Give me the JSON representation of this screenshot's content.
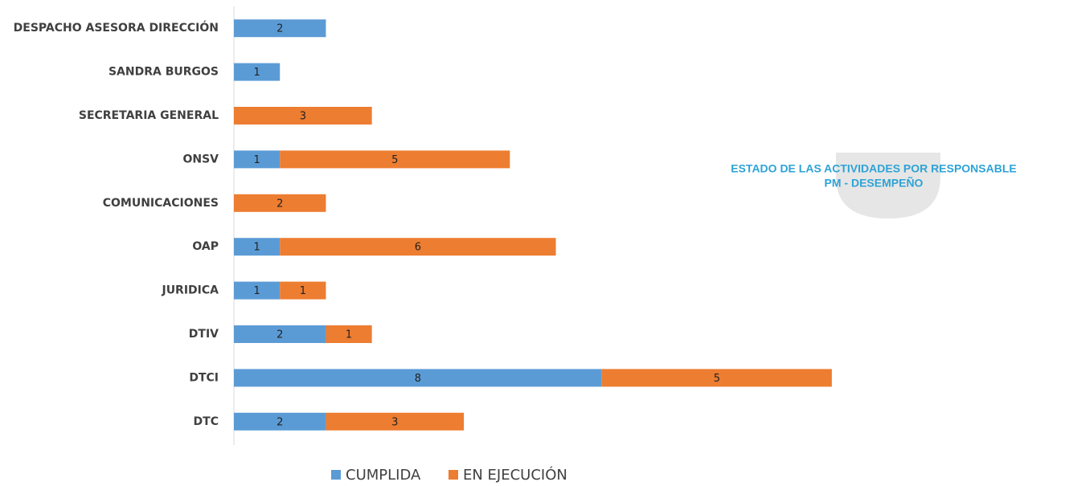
{
  "chart_data": {
    "type": "stacked_barh",
    "title": "ESTADO DE LAS ACTIVIDADES POR RESPONSABLE",
    "subtitle": "PM - DESEMPEÑO",
    "categories": [
      "DESPACHO ASESORA DIRECCIÓN",
      "SANDRA BURGOS",
      "SECRETARIA GENERAL",
      "ONSV",
      "COMUNICACIONES",
      "OAP",
      "JURIDICA",
      "DTIV",
      "DTCI",
      "DTC"
    ],
    "series": [
      {
        "name": "CUMPLIDA",
        "color": "#5b9bd5",
        "values": [
          2,
          1,
          null,
          1,
          null,
          1,
          1,
          2,
          8,
          2
        ]
      },
      {
        "name": "EN EJECUCIÓN",
        "color": "#ed7d31",
        "values": [
          null,
          null,
          3,
          5,
          2,
          6,
          1,
          1,
          5,
          3
        ]
      }
    ],
    "xlim": [
      0,
      18
    ]
  }
}
